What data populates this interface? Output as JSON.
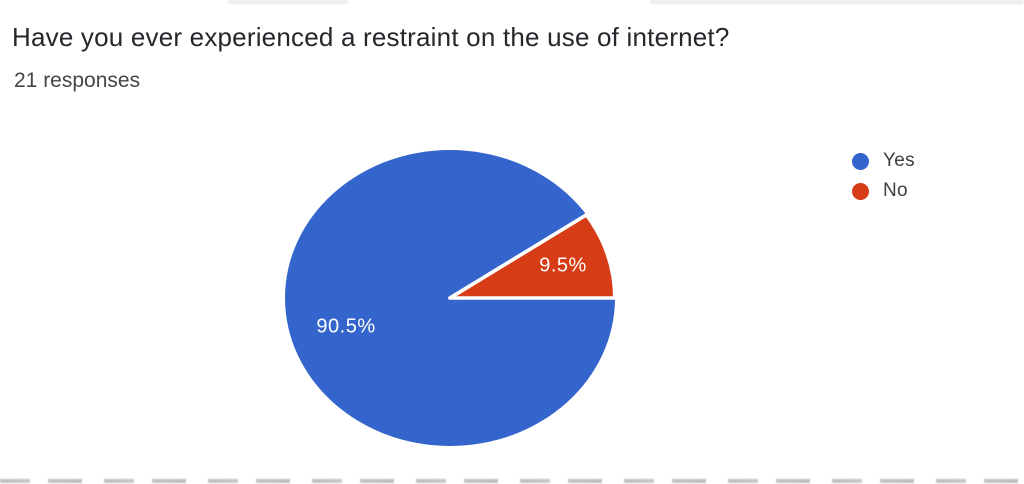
{
  "header": {
    "title": "Have you ever experienced a restraint on the use of internet?",
    "responses_label": "21 responses"
  },
  "chart_data": {
    "type": "pie",
    "title": "Have you ever experienced a restraint on the use of internet?",
    "subtitle": "21 responses",
    "total_responses": 21,
    "categories": [
      "Yes",
      "No"
    ],
    "values": [
      90.5,
      9.5
    ],
    "unit": "%",
    "slice_labels": [
      "90.5%",
      "9.5%"
    ],
    "colors": [
      "#3465cc",
      "#d63c16"
    ],
    "slice_border_color": "#ffffff",
    "legend_position": "right",
    "start_angle_deg": 0,
    "direction": "clockwise"
  }
}
